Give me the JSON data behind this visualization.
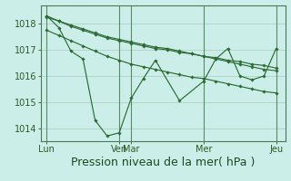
{
  "background_color": "#cceee8",
  "plot_bg_color": "#cceee8",
  "grid_color": "#aaccbb",
  "line_color": "#2d6b35",
  "marker_color": "#2d6b35",
  "xlabel": "Pression niveau de la mer( hPa )",
  "ylim": [
    1013.5,
    1018.7
  ],
  "yticks": [
    1014,
    1015,
    1016,
    1017,
    1018
  ],
  "xtick_labels": [
    "Lun",
    "Ven",
    "Mar",
    "Mer",
    "Jeu"
  ],
  "xtick_positions": [
    0,
    12,
    14,
    26,
    38
  ],
  "vline_x": [
    0,
    12,
    14,
    26,
    38
  ],
  "n_points_s1": 14,
  "n_points_linear": 39,
  "series1_x": [
    0,
    2,
    4,
    6,
    8,
    10,
    12,
    14,
    16,
    18,
    22,
    26,
    28,
    30,
    32,
    34,
    36,
    38
  ],
  "series1_y": [
    1018.3,
    1017.85,
    1016.95,
    1016.65,
    1014.3,
    1013.7,
    1013.82,
    1015.15,
    1015.9,
    1016.6,
    1015.05,
    1015.8,
    1016.65,
    1017.05,
    1016.0,
    1015.85,
    1016.0,
    1017.05
  ],
  "series2_x": [
    0,
    2,
    4,
    6,
    8,
    10,
    12,
    14,
    16,
    18,
    20,
    22,
    24,
    26,
    28,
    30,
    32,
    34,
    36,
    38
  ],
  "series2_y": [
    1018.25,
    1018.1,
    1017.9,
    1017.75,
    1017.6,
    1017.45,
    1017.35,
    1017.25,
    1017.15,
    1017.05,
    1017.0,
    1016.9,
    1016.85,
    1016.75,
    1016.7,
    1016.6,
    1016.55,
    1016.45,
    1016.4,
    1016.3
  ],
  "series3_x": [
    0,
    2,
    4,
    6,
    8,
    10,
    12,
    14,
    16,
    18,
    20,
    22,
    24,
    26,
    28,
    30,
    32,
    34,
    36,
    38
  ],
  "series3_y": [
    1018.3,
    1018.1,
    1017.95,
    1017.8,
    1017.65,
    1017.5,
    1017.4,
    1017.3,
    1017.2,
    1017.1,
    1017.05,
    1016.95,
    1016.85,
    1016.75,
    1016.65,
    1016.55,
    1016.45,
    1016.35,
    1016.25,
    1016.2
  ],
  "series4_x": [
    0,
    2,
    4,
    6,
    8,
    10,
    12,
    14,
    16,
    18,
    20,
    22,
    24,
    26,
    28,
    30,
    32,
    34,
    36,
    38
  ],
  "series4_y": [
    1017.75,
    1017.55,
    1017.35,
    1017.15,
    1016.95,
    1016.75,
    1016.6,
    1016.45,
    1016.35,
    1016.25,
    1016.15,
    1016.05,
    1015.95,
    1015.9,
    1015.8,
    1015.7,
    1015.6,
    1015.5,
    1015.4,
    1015.35
  ],
  "xlabel_fontsize": 9,
  "tick_fontsize": 7
}
